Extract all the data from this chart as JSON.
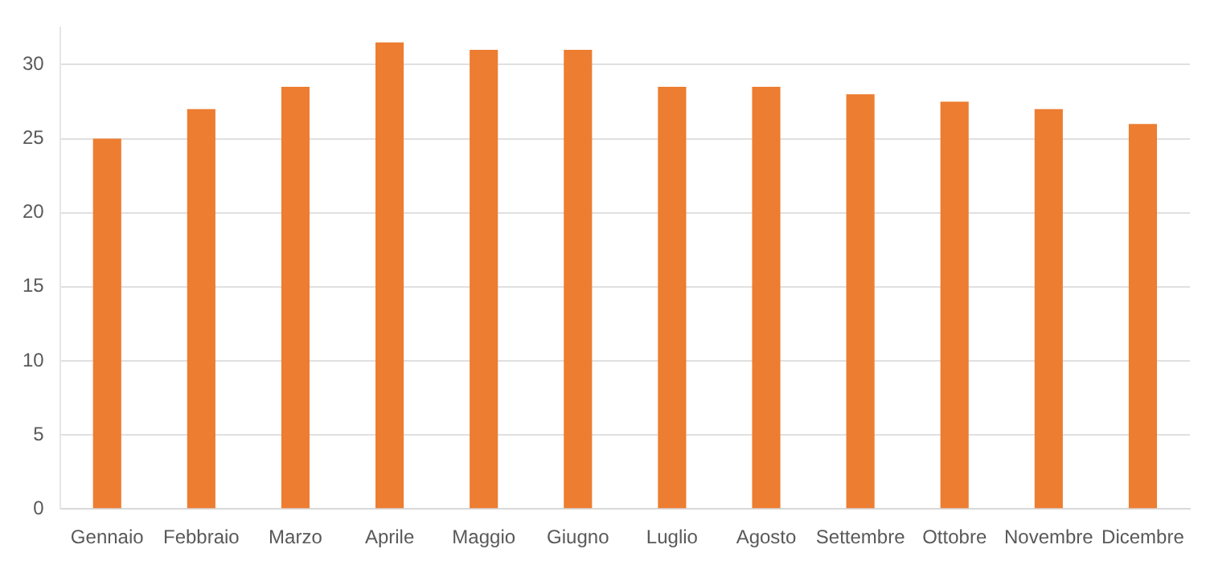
{
  "chart_data": {
    "type": "bar",
    "categories": [
      "Gennaio",
      "Febbraio",
      "Marzo",
      "Aprile",
      "Maggio",
      "Giugno",
      "Luglio",
      "Agosto",
      "Settembre",
      "Ottobre",
      "Novembre",
      "Dicembre"
    ],
    "values": [
      25,
      27,
      28.5,
      31.5,
      31,
      31,
      28.5,
      28.5,
      28,
      27.5,
      27,
      26
    ],
    "color": "#ed7d31",
    "ylim": [
      0,
      32.5
    ],
    "yticks": [
      0,
      5,
      10,
      15,
      20,
      25,
      30
    ],
    "grid": "y",
    "legend": false
  }
}
